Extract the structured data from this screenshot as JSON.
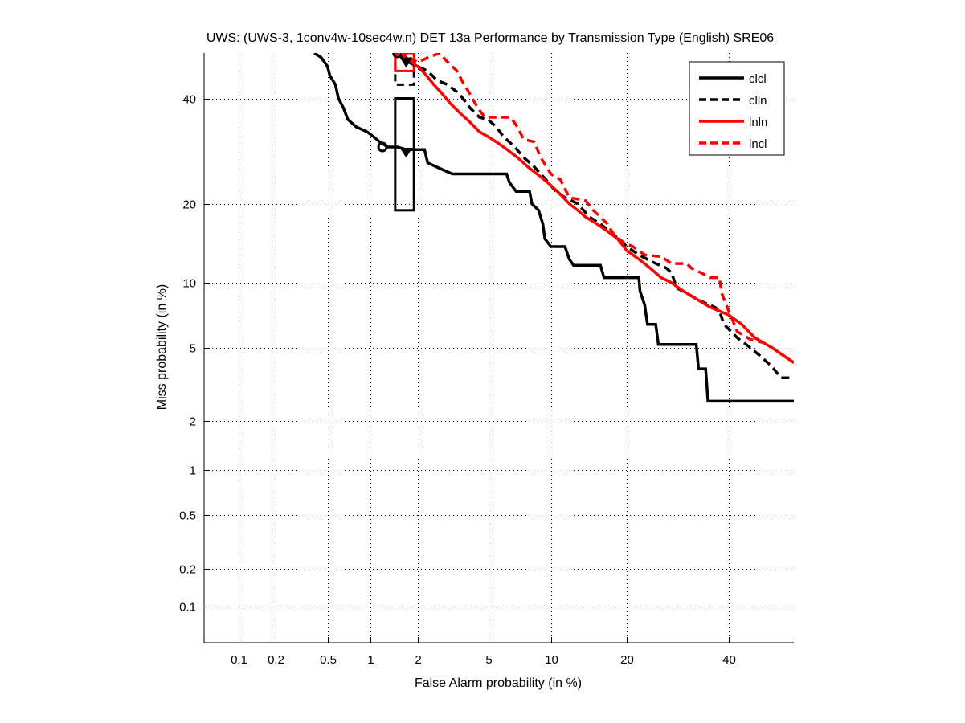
{
  "chart_data": {
    "type": "line",
    "subtype": "DET curve (normal deviate scale)",
    "title": "UWS: (UWS-3, 1conv4w-10sec4w.n) DET 13a Performance by Transmission Type (English) SRE06",
    "xlabel": "False Alarm probability (in %)",
    "ylabel": "Miss probability (in %)",
    "xlim": [
      0.05,
      55
    ],
    "ylim": [
      0.05,
      50
    ],
    "x_ticks": [
      0.1,
      0.2,
      0.5,
      1,
      2,
      5,
      10,
      20,
      40
    ],
    "x_tick_labels": [
      "0.1",
      "0.2",
      "0.5",
      "1",
      "2",
      "5",
      "10",
      "20",
      "40"
    ],
    "y_ticks": [
      0.1,
      0.2,
      0.5,
      1,
      2,
      5,
      10,
      20,
      40
    ],
    "y_tick_labels": [
      "0.1",
      "0.2",
      "0.5",
      "1",
      "2",
      "5",
      "10",
      "20",
      "40"
    ],
    "grid": true,
    "legend_position": "top-right",
    "series": [
      {
        "name": "clcl",
        "color": "#000000",
        "style": "solid",
        "points": [
          [
            0.4,
            50
          ],
          [
            0.45,
            49
          ],
          [
            0.5,
            47
          ],
          [
            0.52,
            45
          ],
          [
            0.57,
            43
          ],
          [
            0.6,
            40
          ],
          [
            0.65,
            38
          ],
          [
            0.7,
            35.5
          ],
          [
            0.8,
            34
          ],
          [
            0.95,
            33
          ],
          [
            1.05,
            32
          ],
          [
            1.15,
            31
          ],
          [
            1.3,
            30
          ],
          [
            1.5,
            30
          ],
          [
            1.7,
            29.5
          ],
          [
            2.2,
            29.5
          ],
          [
            2.3,
            27
          ],
          [
            2.7,
            26
          ],
          [
            3.2,
            25
          ],
          [
            4.8,
            25
          ],
          [
            6.2,
            25
          ],
          [
            6.4,
            23.5
          ],
          [
            6.9,
            22
          ],
          [
            8,
            22
          ],
          [
            8.2,
            20
          ],
          [
            8.8,
            19
          ],
          [
            9.2,
            17
          ],
          [
            9.4,
            15
          ],
          [
            10,
            14
          ],
          [
            11.5,
            14
          ],
          [
            12,
            12.5
          ],
          [
            12.5,
            11.8
          ],
          [
            16,
            11.8
          ],
          [
            16.5,
            10.5
          ],
          [
            22,
            10.5
          ],
          [
            22.2,
            9.2
          ],
          [
            23,
            8
          ],
          [
            23.5,
            6.5
          ],
          [
            25,
            6.5
          ],
          [
            25.5,
            5.2
          ],
          [
            33,
            5.2
          ],
          [
            33.5,
            3.9
          ],
          [
            35,
            3.9
          ],
          [
            35.5,
            2.6
          ],
          [
            55,
            2.6
          ]
        ]
      },
      {
        "name": "clln",
        "color": "#000000",
        "style": "dashed",
        "points": [
          [
            1.5,
            50
          ],
          [
            1.75,
            48
          ],
          [
            2,
            47
          ],
          [
            2.3,
            46
          ],
          [
            2.6,
            44
          ],
          [
            3,
            43
          ],
          [
            3.5,
            41
          ],
          [
            4,
            38
          ],
          [
            4.5,
            36
          ],
          [
            5,
            35.5
          ],
          [
            5.5,
            34
          ],
          [
            6,
            32
          ],
          [
            6.8,
            30
          ],
          [
            7.5,
            28
          ],
          [
            8.3,
            26.5
          ],
          [
            9,
            25
          ],
          [
            9.5,
            24
          ],
          [
            10.5,
            22
          ],
          [
            11.5,
            21
          ],
          [
            13,
            20
          ],
          [
            14.5,
            18
          ],
          [
            16,
            17
          ],
          [
            18,
            15.5
          ],
          [
            20,
            14
          ],
          [
            22,
            13
          ],
          [
            25,
            12
          ],
          [
            27,
            11.5
          ],
          [
            28,
            11
          ],
          [
            29,
            9.5
          ],
          [
            31,
            9
          ],
          [
            34,
            8.3
          ],
          [
            37,
            7.8
          ],
          [
            38,
            7.5
          ],
          [
            39,
            6.5
          ],
          [
            42,
            5.6
          ],
          [
            44,
            5.2
          ],
          [
            47,
            4.6
          ],
          [
            50,
            4.0
          ],
          [
            52,
            3.5
          ],
          [
            55,
            3.5
          ]
        ]
      },
      {
        "name": "lnln",
        "color": "#ff0000",
        "style": "solid",
        "points": [
          [
            1.6,
            50
          ],
          [
            1.75,
            48.5
          ],
          [
            2,
            47
          ],
          [
            2.2,
            45.5
          ],
          [
            2.5,
            43
          ],
          [
            2.8,
            41
          ],
          [
            3.1,
            39
          ],
          [
            3.5,
            37
          ],
          [
            4,
            35
          ],
          [
            4.5,
            33
          ],
          [
            5,
            32
          ],
          [
            5.5,
            31
          ],
          [
            6,
            30
          ],
          [
            7,
            28
          ],
          [
            8,
            26
          ],
          [
            9,
            24.5
          ],
          [
            10,
            23
          ],
          [
            11,
            21.5
          ],
          [
            12,
            20
          ],
          [
            13,
            19
          ],
          [
            14,
            18
          ],
          [
            15.5,
            17
          ],
          [
            17,
            16
          ],
          [
            18.5,
            15
          ],
          [
            20,
            13.5
          ],
          [
            22,
            12.5
          ],
          [
            24,
            11.5
          ],
          [
            26,
            10.5
          ],
          [
            28,
            10
          ],
          [
            30,
            9.3
          ],
          [
            33,
            8.5
          ],
          [
            36,
            7.8
          ],
          [
            40,
            7.2
          ],
          [
            43,
            6.5
          ],
          [
            46,
            5.6
          ],
          [
            50,
            5
          ],
          [
            53,
            4.5
          ],
          [
            55,
            4.2
          ]
        ]
      },
      {
        "name": "lncl",
        "color": "#ff0000",
        "style": "dashed",
        "points": [
          [
            1.5,
            50
          ],
          [
            1.75,
            49
          ],
          [
            2,
            48
          ],
          [
            2.7,
            50
          ],
          [
            3,
            48
          ],
          [
            3.4,
            46
          ],
          [
            3.6,
            44
          ],
          [
            4,
            41
          ],
          [
            4.4,
            38
          ],
          [
            4.8,
            36
          ],
          [
            5.5,
            36
          ],
          [
            6.5,
            36
          ],
          [
            7,
            34
          ],
          [
            7.5,
            31.5
          ],
          [
            8.4,
            31
          ],
          [
            9,
            28
          ],
          [
            10,
            25
          ],
          [
            11,
            24
          ],
          [
            12,
            21
          ],
          [
            14,
            20.5
          ],
          [
            15,
            19
          ],
          [
            16,
            18
          ],
          [
            17,
            17
          ],
          [
            18,
            15.5
          ],
          [
            19.5,
            14.5
          ],
          [
            21,
            14
          ],
          [
            23,
            13
          ],
          [
            26,
            12.8
          ],
          [
            28,
            12
          ],
          [
            31,
            12
          ],
          [
            32,
            11.5
          ],
          [
            34,
            11
          ],
          [
            36,
            10.5
          ],
          [
            38,
            10.5
          ],
          [
            38.5,
            9
          ],
          [
            39.5,
            8
          ],
          [
            42,
            6
          ],
          [
            45,
            5.5
          ],
          [
            48,
            5.3
          ],
          [
            50,
            5
          ],
          [
            55,
            4.2
          ]
        ]
      }
    ],
    "markers": [
      {
        "series": "clcl",
        "type": "circle",
        "x": 1.2,
        "y": 30
      },
      {
        "series": "clcl",
        "type": "triangle-down",
        "x": 1.7,
        "y": 29
      },
      {
        "series": "clln",
        "type": "circle",
        "x": 1.5,
        "y": 50
      },
      {
        "series": "clln",
        "type": "triangle-down",
        "x": 1.7,
        "y": 48
      },
      {
        "series": "lnln",
        "type": "triangle-down",
        "x": 1.65,
        "y": 50
      }
    ],
    "confidence_boxes": [
      {
        "series": "clcl",
        "style": "solid",
        "color": "#000000",
        "x_range": [
          1.45,
          1.9
        ],
        "y_range": [
          19,
          40
        ]
      },
      {
        "series": "clln",
        "style": "dashed",
        "color": "#000000",
        "x_range": [
          1.45,
          1.9
        ],
        "y_range": [
          43,
          50
        ]
      },
      {
        "series": "lnln",
        "style": "solid",
        "color": "#ff0000",
        "x_range": [
          1.45,
          1.9
        ],
        "y_range": [
          46,
          50
        ]
      }
    ]
  }
}
